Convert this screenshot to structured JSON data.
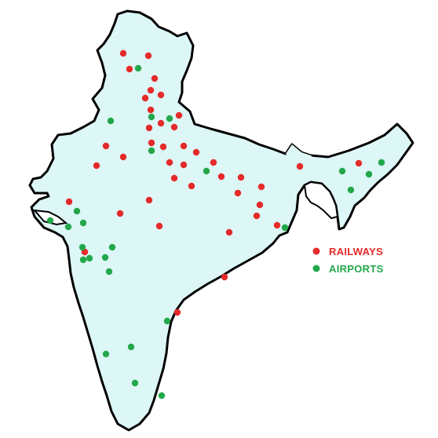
{
  "map": {
    "land_color": "#ddf6f6",
    "border_color": "#000000"
  },
  "legend": {
    "items": [
      {
        "label": "RAILWAYS",
        "color": "#e52a2a",
        "key": "railways"
      },
      {
        "label": "AIRPORTS",
        "color": "#22a84a",
        "key": "airports"
      }
    ]
  },
  "markers": {
    "railways": [
      [
        157,
        68
      ],
      [
        189,
        71
      ],
      [
        165,
        88
      ],
      [
        197,
        100
      ],
      [
        192,
        115
      ],
      [
        185,
        125
      ],
      [
        205,
        121
      ],
      [
        192,
        140
      ],
      [
        228,
        147
      ],
      [
        205,
        157
      ],
      [
        222,
        162
      ],
      [
        190,
        163
      ],
      [
        234,
        186
      ],
      [
        208,
        187
      ],
      [
        250,
        194
      ],
      [
        193,
        182
      ],
      [
        135,
        186
      ],
      [
        157,
        200
      ],
      [
        123,
        211
      ],
      [
        216,
        207
      ],
      [
        234,
        210
      ],
      [
        272,
        207
      ],
      [
        282,
        225
      ],
      [
        307,
        226
      ],
      [
        333,
        238
      ],
      [
        244,
        237
      ],
      [
        222,
        227
      ],
      [
        303,
        246
      ],
      [
        331,
        261
      ],
      [
        327,
        275
      ],
      [
        353,
        287
      ],
      [
        292,
        296
      ],
      [
        203,
        288
      ],
      [
        190,
        255
      ],
      [
        153,
        272
      ],
      [
        88,
        257
      ],
      [
        108,
        321
      ],
      [
        286,
        353
      ],
      [
        226,
        398
      ],
      [
        382,
        212
      ],
      [
        457,
        208
      ]
    ],
    "airports": [
      [
        176,
        87
      ],
      [
        141,
        154
      ],
      [
        193,
        149
      ],
      [
        216,
        151
      ],
      [
        193,
        192
      ],
      [
        263,
        218
      ],
      [
        98,
        269
      ],
      [
        64,
        281
      ],
      [
        87,
        289
      ],
      [
        106,
        284
      ],
      [
        105,
        315
      ],
      [
        114,
        329
      ],
      [
        106,
        331
      ],
      [
        134,
        328
      ],
      [
        143,
        315
      ],
      [
        139,
        346
      ],
      [
        213,
        409
      ],
      [
        167,
        442
      ],
      [
        135,
        451
      ],
      [
        172,
        488
      ],
      [
        206,
        504
      ],
      [
        363,
        290
      ],
      [
        436,
        218
      ],
      [
        470,
        222
      ],
      [
        486,
        207
      ],
      [
        447,
        242
      ]
    ]
  }
}
